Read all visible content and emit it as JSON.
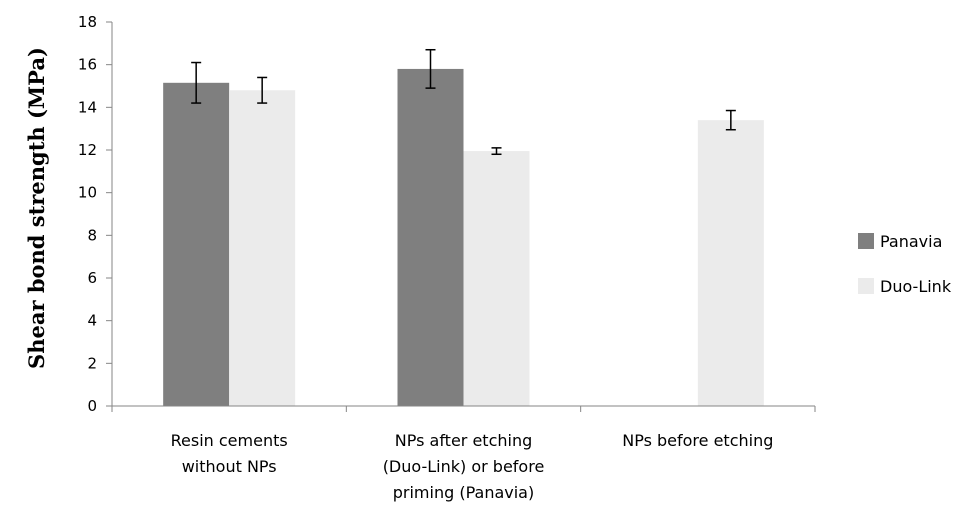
{
  "chart_data": {
    "type": "bar",
    "title": "",
    "xlabel": "",
    "ylabel": "Shear bond strength (MPa)",
    "ylim": [
      0,
      18
    ],
    "yticks": [
      0,
      2,
      4,
      6,
      8,
      10,
      12,
      14,
      16,
      18
    ],
    "grid": false,
    "legend_position": "right",
    "categories": [
      [
        "Resin cements",
        "without NPs"
      ],
      [
        "NPs after etching",
        "(Duo-Link) or before",
        "priming (Panavia)"
      ],
      [
        "NPs before etching"
      ]
    ],
    "series": [
      {
        "name": "Panavia",
        "color": "#7f7f7f",
        "values": [
          15.15,
          15.8,
          null
        ],
        "errors": [
          0.95,
          0.9,
          null
        ]
      },
      {
        "name": "Duo-Link",
        "color": "#ebebeb",
        "values": [
          14.8,
          11.95,
          13.4
        ],
        "errors": [
          0.6,
          0.15,
          0.45
        ]
      }
    ]
  }
}
